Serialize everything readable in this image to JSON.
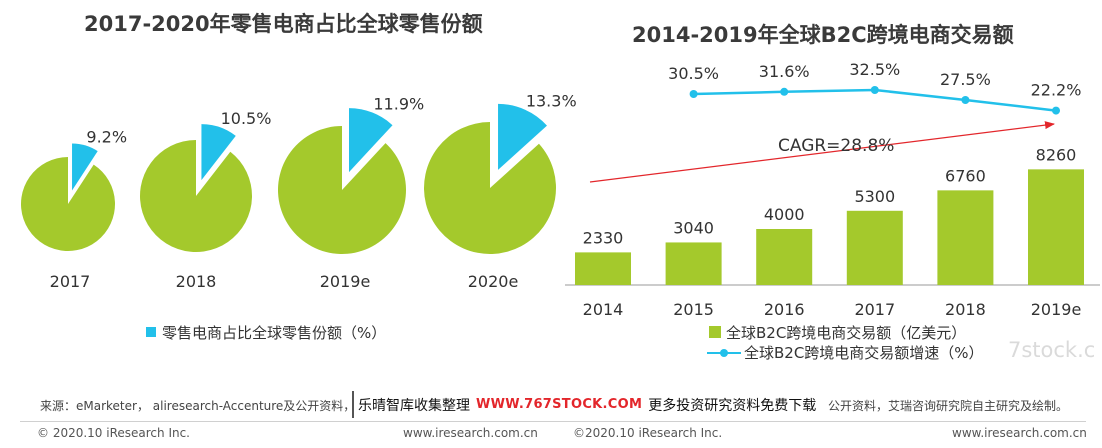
{
  "chart_data": [
    {
      "type": "pie",
      "title": "2017-2020年零售电商占比全球零售份额",
      "categories": [
        "2017",
        "2018",
        "2019e",
        "2020e"
      ],
      "series": [
        {
          "name": "零售电商占比全球零售份额（%）",
          "values": [
            9.2,
            10.5,
            11.9,
            13.3
          ],
          "labels": [
            "9.2%",
            "10.5%",
            "11.9%",
            "13.3%"
          ]
        }
      ],
      "legend_position": "bottom",
      "colors": {
        "slice": "#22c0ea",
        "remainder": "#a4c92c"
      }
    },
    {
      "type": "bar",
      "title": "2014-2019年全球B2C跨境电商交易额",
      "categories": [
        "2014",
        "2015",
        "2016",
        "2017",
        "2018",
        "2019e"
      ],
      "series": [
        {
          "name": "全球B2C跨境电商交易额（亿美元）",
          "type": "bar",
          "values": [
            2330,
            3040,
            4000,
            5300,
            6760,
            8260
          ],
          "color": "#a4c92c"
        },
        {
          "name": "全球B2C跨境电商交易额增速（%）",
          "type": "line",
          "values": [
            null,
            30.5,
            31.6,
            32.5,
            27.5,
            22.2
          ],
          "labels": [
            null,
            "30.5%",
            "31.6%",
            "32.5%",
            "27.5%",
            "22.2%"
          ],
          "color": "#22c0ea"
        }
      ],
      "annotation": {
        "text": "CAGR=28.8%",
        "color": "#e3262b"
      },
      "legend_position": "bottom",
      "grid": false
    }
  ],
  "source": {
    "left": "来源：eMarketer， aliresearch-Accenture及公开资料，",
    "right": "公开资料，艾瑞咨询研究院自主研究及绘制。"
  },
  "banner": {
    "prefix": "乐晴智库收集整理",
    "url": "WWW.767STOCK.COM",
    "suffix": "更多投资研究资料免费下载"
  },
  "footer": {
    "copyright_left": "© 2020.10 iResearch Inc.",
    "site_left": "www.iresearch.com.cn",
    "copyright_right": "©2020.10 iResearch Inc.",
    "site_right": "www.iresearch.com.cn"
  },
  "watermark": "7stock.c"
}
